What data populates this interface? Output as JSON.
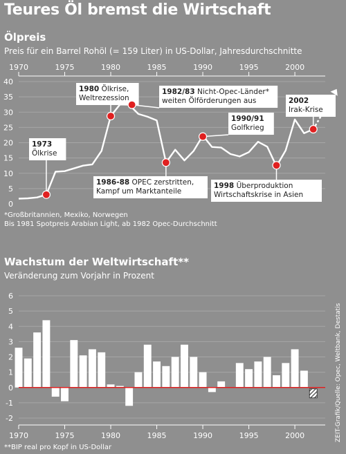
{
  "title": "Teures Öl bremst die Wirtschaft",
  "credit": "ZEIT-Grafik/Quelle: Opec, Weltbank, Destatis",
  "colors": {
    "background": "#8f8f8f",
    "line": "#ffffff",
    "marker": "#e02020",
    "zero_line": "#e02020",
    "label_box": "#ffffff"
  },
  "oil": {
    "title": "Ölpreis",
    "subtitle": "Preis für ein Barrel Rohöl (= 159 Liter) in US-Dollar, Jahresdurchschnitte",
    "footnote_lines": [
      "*Großbritannien, Mexiko, Norwegen",
      "Bis 1981 Spotpreis Arabian Light, ab 1982 Opec-Durchschnitt"
    ]
  },
  "growth": {
    "title": "Wachstum der Weltwirtschaft**",
    "subtitle": "Veränderung zum Vorjahr in Prozent",
    "footnote": "**BIP real pro Kopf in US-Dollar"
  },
  "chart_data": [
    {
      "type": "line",
      "title": "Ölpreis",
      "subtitle": "Preis für ein Barrel Rohöl (= 159 Liter) in US-Dollar, Jahresdurchschnitte",
      "x": [
        1970,
        1971,
        1972,
        1973,
        1974,
        1975,
        1976,
        1977,
        1978,
        1979,
        1980,
        1981,
        1982,
        1983,
        1984,
        1985,
        1986,
        1987,
        1988,
        1989,
        1990,
        1991,
        1992,
        1993,
        1994,
        1995,
        1996,
        1997,
        1998,
        1999,
        2000,
        2001,
        2002
      ],
      "y": [
        1.7,
        1.8,
        2.1,
        3.0,
        10.5,
        10.7,
        11.6,
        12.5,
        12.9,
        17.3,
        28.7,
        32.5,
        32.4,
        29.4,
        28.5,
        27.3,
        13.5,
        17.7,
        14.2,
        17.3,
        22.3,
        18.6,
        18.4,
        16.3,
        15.5,
        16.9,
        20.3,
        18.7,
        12.3,
        17.5,
        27.6,
        23.1,
        24.4
      ],
      "arrow": {
        "from": [
          2002,
          24.4
        ],
        "to": [
          2005,
          36
        ]
      },
      "xlim": [
        1970,
        2003.3
      ],
      "ylim": [
        0,
        40
      ],
      "xticks": [
        1970,
        1975,
        1980,
        1985,
        1990,
        1995,
        2000
      ],
      "yticks": [
        0,
        5,
        10,
        15,
        20,
        25,
        30,
        35,
        40
      ],
      "grid": true,
      "annotations": [
        {
          "year": "1973",
          "lines": [
            "Ölkrise"
          ],
          "point": [
            1973,
            3.0
          ]
        },
        {
          "year": "1980",
          "lines": [
            "Ölkrise,",
            "Weltrezession"
          ],
          "point": [
            1980,
            28.7
          ]
        },
        {
          "year": "1982/83",
          "lines": [
            "Nicht-Opec-Länder*",
            "weiten Ölförderungen aus"
          ],
          "point": [
            1982.3,
            32.4
          ]
        },
        {
          "year": "1986-88",
          "lines": [
            "OPEC zerstritten,",
            "Kampf um Marktanteile"
          ],
          "point": [
            1986,
            13.5
          ]
        },
        {
          "year": "1990/91",
          "lines": [
            "Golfkrieg"
          ],
          "point": [
            1990,
            22.0
          ]
        },
        {
          "year": "1998",
          "lines": [
            "Überproduktion",
            "Wirtschaftskrise in Asien"
          ],
          "point": [
            1998,
            12.6
          ]
        },
        {
          "year": "2002",
          "lines": [
            "Irak-Krise"
          ],
          "point": [
            2002,
            24.4
          ]
        }
      ]
    },
    {
      "type": "bar",
      "title": "Wachstum der Weltwirtschaft**",
      "subtitle": "Veränderung zum Vorjahr in Prozent",
      "categories": [
        1970,
        1971,
        1972,
        1973,
        1974,
        1975,
        1976,
        1977,
        1978,
        1979,
        1980,
        1981,
        1982,
        1983,
        1984,
        1985,
        1986,
        1987,
        1988,
        1989,
        1990,
        1991,
        1992,
        1993,
        1994,
        1995,
        1996,
        1997,
        1998,
        1999,
        2000,
        2001
      ],
      "values": [
        2.6,
        1.9,
        3.6,
        4.4,
        -0.6,
        -0.9,
        3.1,
        2.1,
        2.5,
        2.3,
        0.2,
        0.1,
        -1.2,
        1.0,
        2.8,
        1.7,
        1.4,
        2.0,
        2.8,
        2.0,
        1.0,
        -0.3,
        0.4,
        0.0,
        1.6,
        1.2,
        1.7,
        2.0,
        0.8,
        1.6,
        2.5,
        1.1
      ],
      "estimate_category": 2002,
      "xlim": [
        1970,
        2003.3
      ],
      "ylim": [
        -2,
        6
      ],
      "xticks": [
        1970,
        1975,
        1980,
        1985,
        1990,
        1995,
        2000
      ],
      "yticks": [
        -2,
        -1,
        0,
        1,
        2,
        3,
        4,
        5,
        6
      ],
      "grid": true
    }
  ]
}
